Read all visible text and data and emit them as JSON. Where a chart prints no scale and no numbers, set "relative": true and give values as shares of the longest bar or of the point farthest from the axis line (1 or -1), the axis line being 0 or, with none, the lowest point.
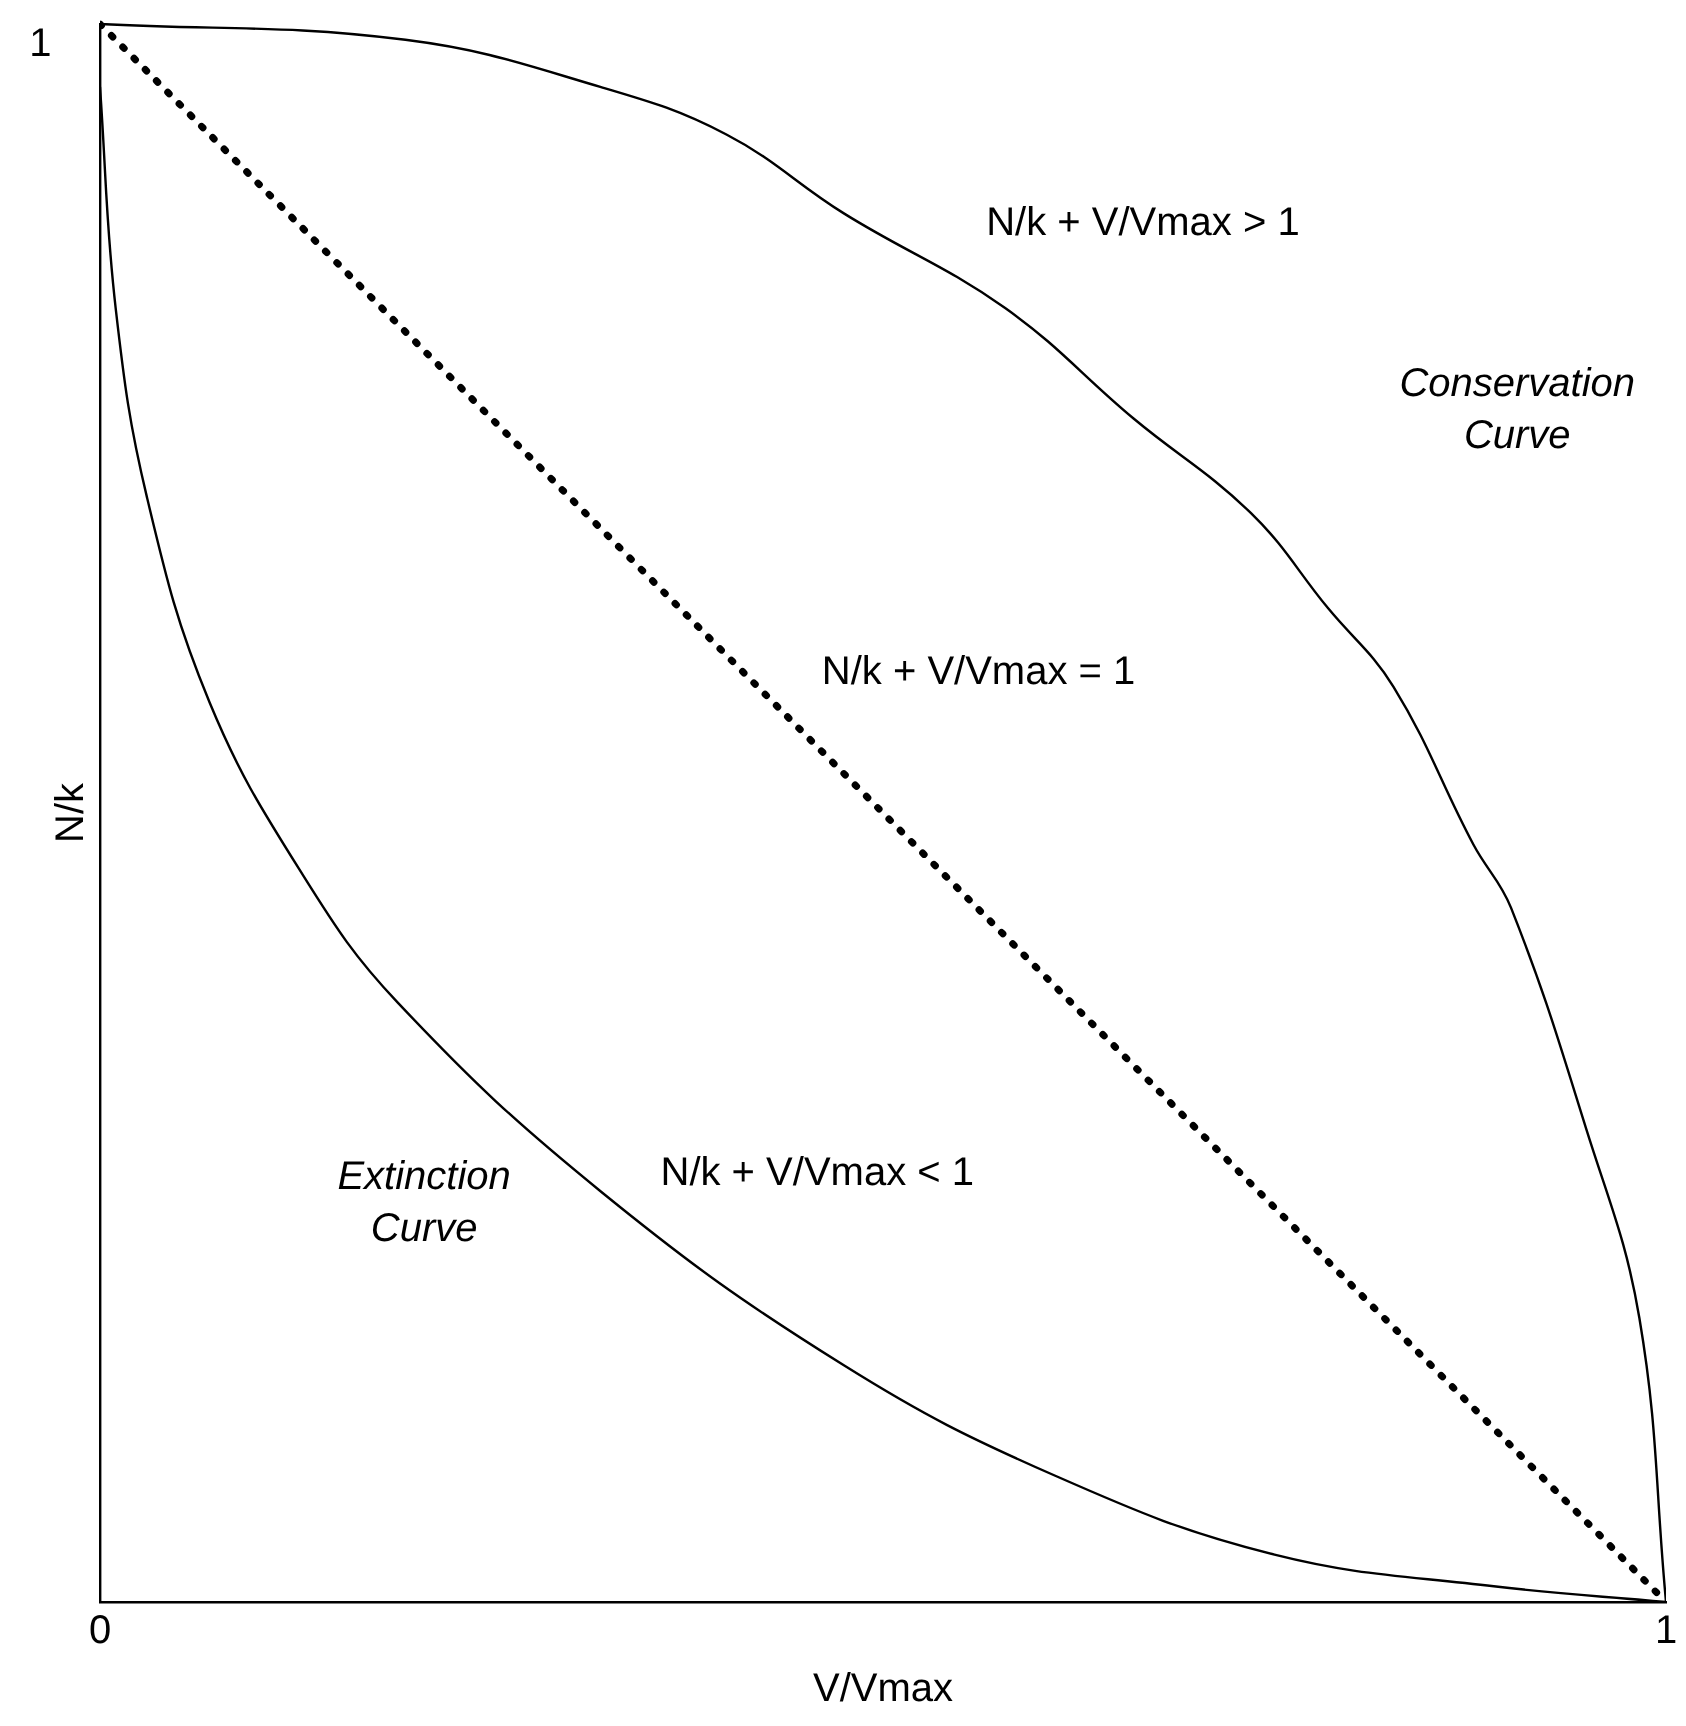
{
  "chart_data": {
    "type": "line",
    "xlabel": "V/Vmax",
    "ylabel": "N/k",
    "xlim": [
      0,
      1
    ],
    "xticks": [
      0,
      1
    ],
    "relative": true,
    "grid": false,
    "legend": false,
    "marker": "none",
    "series": [
      {
        "color": "#000000",
        "line_style": "solid",
        "x": [
          0,
          0.195,
          0.32,
          0.4,
          0.475,
          0.578,
          0.66,
          0.735,
          0.784,
          0.826,
          0.877,
          0.901,
          0.949,
          0.983,
          1
        ],
        "values": [
          1,
          0.99,
          0.96,
          0.93,
          0.88,
          0.82,
          0.75,
          0.69,
          0.63,
          0.58,
          0.48,
          0.44,
          0.3,
          0.18,
          0
        ]
      },
      {
        "color": "#000000",
        "line_style": "solid",
        "x": [
          0,
          0.01,
          0.03,
          0.07,
          0.13,
          0.19,
          0.32,
          0.475,
          0.61,
          0.75,
          0.89,
          1
        ],
        "values": [
          0.96,
          0.82,
          0.7,
          0.57,
          0.46,
          0.38,
          0.26,
          0.15,
          0.08,
          0.03,
          0.01,
          0
        ]
      },
      {
        "color": "#000000",
        "line_style": "dotted",
        "x": [
          0,
          1
        ],
        "values": [
          1,
          0
        ]
      }
    ],
    "annotations": [
      "N/k + V/Vmax > 1",
      "Conservation\nCurve",
      "N/k + V/Vmax = 1",
      "N/k + V/Vmax < 1",
      "Extinction\nCurve",
      "1"
    ]
  }
}
